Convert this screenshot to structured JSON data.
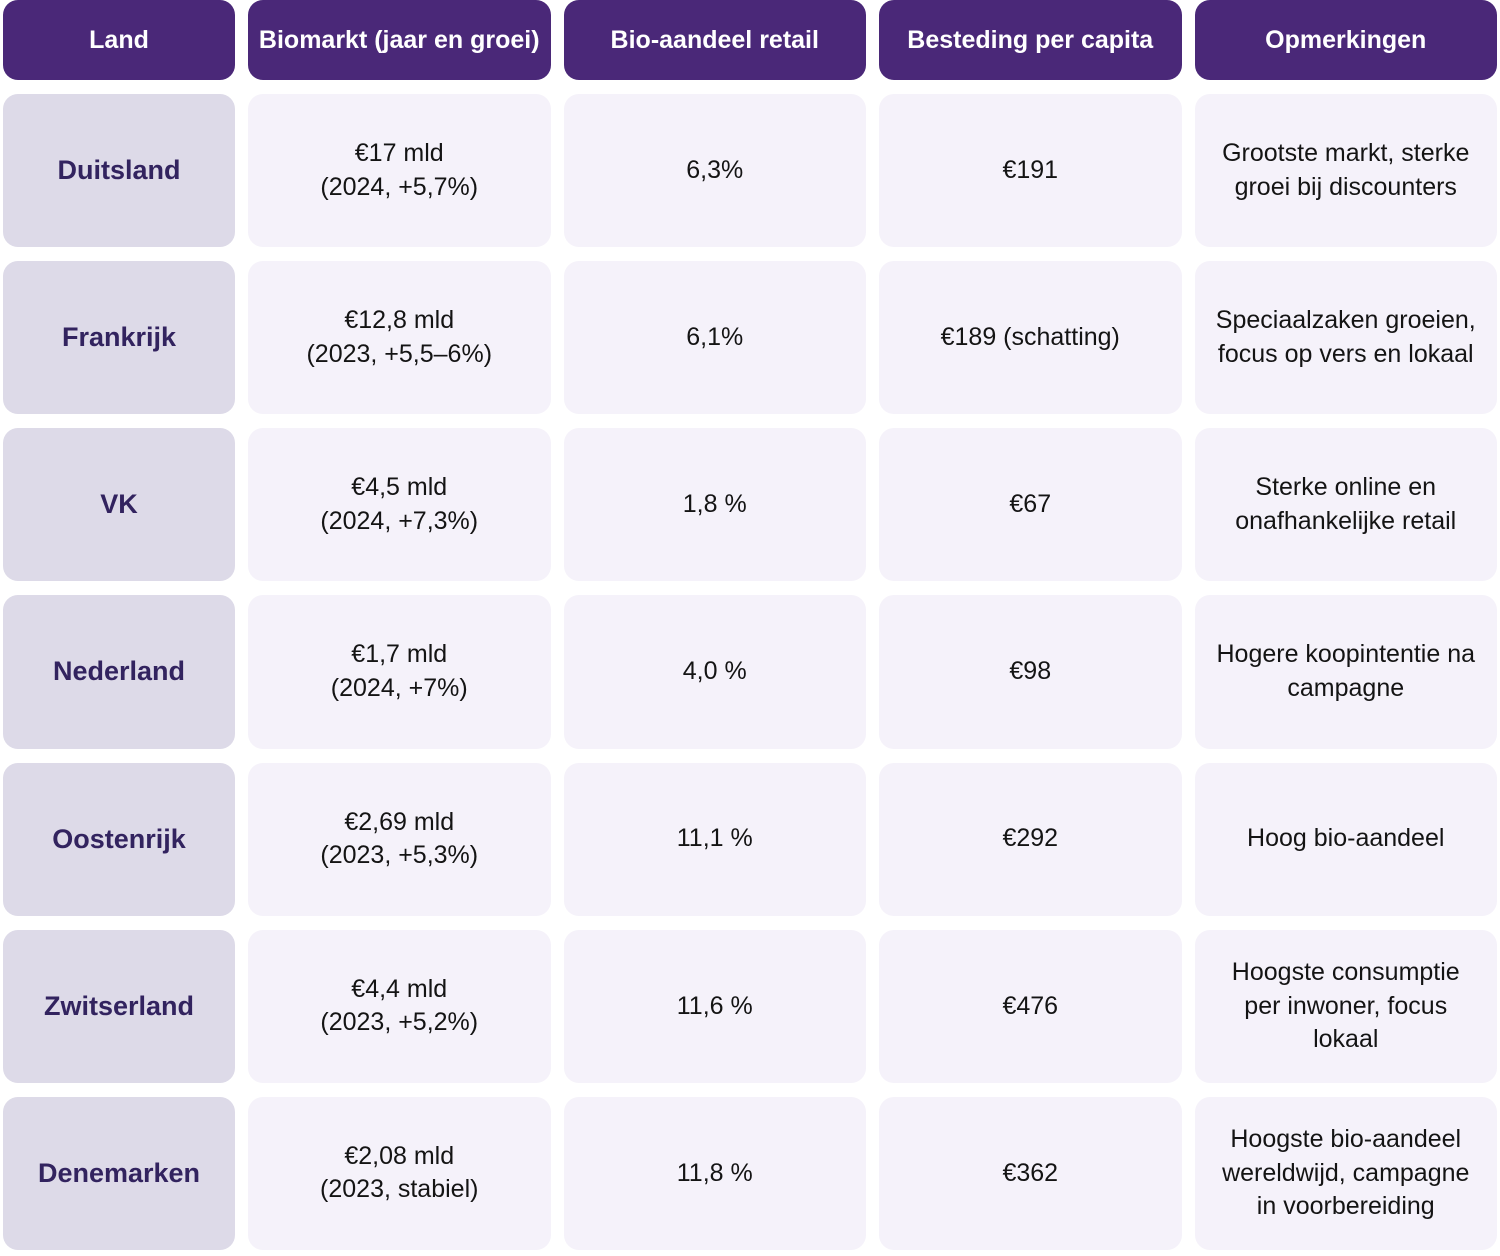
{
  "header": {
    "columns": [
      "Land",
      "Biomarkt (jaar en groei)",
      "Bio-aandeel retail",
      "Besteding per capita",
      "Opmerkingen"
    ]
  },
  "rows": [
    {
      "land": "Duitsland",
      "biomarkt_value": "€17 mld",
      "biomarkt_detail": "(2024, +5,7%)",
      "bio_aandeel": "6,3%",
      "besteding": "€191",
      "opmerkingen": "Grootste markt, sterke groei bij discounters"
    },
    {
      "land": "Frankrijk",
      "biomarkt_value": "€12,8 mld",
      "biomarkt_detail": "(2023, +5,5–6%)",
      "bio_aandeel": "6,1%",
      "besteding": "€189 (schatting)",
      "opmerkingen": "Speciaalzaken groeien, focus op vers en lokaal"
    },
    {
      "land": "VK",
      "biomarkt_value": "€4,5 mld",
      "biomarkt_detail": "(2024, +7,3%)",
      "bio_aandeel": "1,8 %",
      "besteding": "€67",
      "opmerkingen": "Sterke online en onafhankelijke retail"
    },
    {
      "land": "Nederland",
      "biomarkt_value": "€1,7 mld",
      "biomarkt_detail": "(2024, +7%)",
      "bio_aandeel": "4,0 %",
      "besteding": "€98",
      "opmerkingen": "Hogere koopintentie na campagne"
    },
    {
      "land": "Oostenrijk",
      "biomarkt_value": "€2,69 mld",
      "biomarkt_detail": "(2023, +5,3%)",
      "bio_aandeel": "11,1 %",
      "besteding": "€292",
      "opmerkingen": "Hoog bio-aandeel"
    },
    {
      "land": "Zwitserland",
      "biomarkt_value": "€4,4 mld",
      "biomarkt_detail": "(2023, +5,2%)",
      "bio_aandeel": "11,6 %",
      "besteding": "€476",
      "opmerkingen": "Hoogste consumptie per inwoner, focus lokaal"
    },
    {
      "land": "Denemarken",
      "biomarkt_value": "€2,08 mld",
      "biomarkt_detail": "(2023, stabiel)",
      "bio_aandeel": "11,8 %",
      "besteding": "€362",
      "opmerkingen": "Hoogste bio-aandeel wereldwijd, campagne in voorbereiding"
    }
  ],
  "colors": {
    "header_bg": "#4a2878",
    "header_text": "#ffffff",
    "land_bg": "#dddae8",
    "land_text": "#32235f",
    "cell_bg": "#f5f2fa",
    "cell_text": "#141414",
    "page_bg": "#ffffff"
  },
  "chart_data": {
    "type": "table",
    "columns": [
      "Land",
      "Biomarkt (jaar en groei)",
      "Bio-aandeel retail",
      "Besteding per capita",
      "Opmerkingen"
    ],
    "rows": [
      [
        "Duitsland",
        "€17 mld (2024, +5,7%)",
        "6,3%",
        "€191",
        "Grootste markt, sterke groei bij discounters"
      ],
      [
        "Frankrijk",
        "€12,8 mld (2023, +5,5–6%)",
        "6,1%",
        "€189 (schatting)",
        "Speciaalzaken groeien, focus op vers en lokaal"
      ],
      [
        "VK",
        "€4,5 mld (2024, +7,3%)",
        "1,8 %",
        "€67",
        "Sterke online en onafhankelijke retail"
      ],
      [
        "Nederland",
        "€1,7 mld (2024, +7%)",
        "4,0 %",
        "€98",
        "Hogere koopintentie na campagne"
      ],
      [
        "Oostenrijk",
        "€2,69 mld (2023, +5,3%)",
        "11,1 %",
        "€292",
        "Hoog bio-aandeel"
      ],
      [
        "Zwitserland",
        "€4,4 mld (2023, +5,2%)",
        "11,6 %",
        "€476",
        "Hoogste consumptie per inwoner, focus lokaal"
      ],
      [
        "Denemarken",
        "€2,08 mld (2023, stabiel)",
        "11,8 %",
        "€362",
        "Hoogste bio-aandeel wereldwijd, campagne in voorbereiding"
      ]
    ]
  }
}
